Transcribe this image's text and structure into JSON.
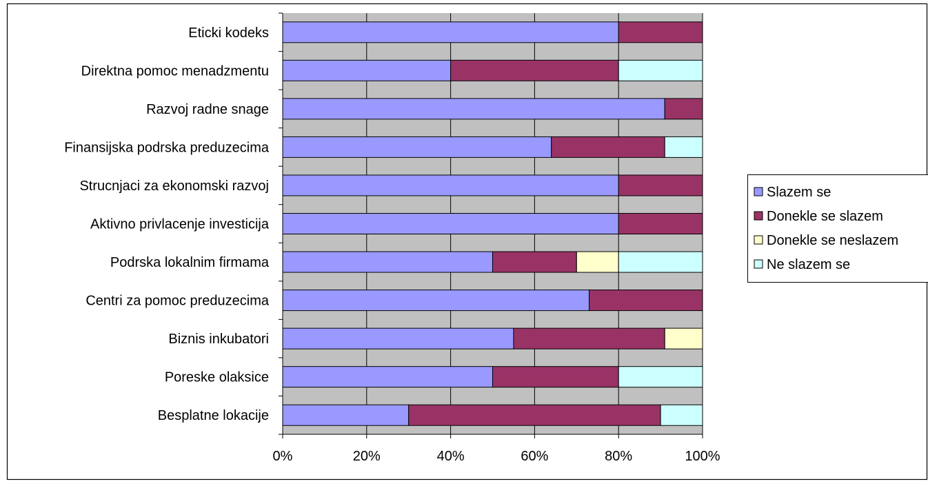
{
  "chart_data": {
    "type": "bar",
    "orientation": "horizontal",
    "stacked": "percent",
    "title": "",
    "xlabel": "",
    "ylabel": "",
    "xlim": [
      0,
      100
    ],
    "x_ticks": [
      "0%",
      "20%",
      "40%",
      "60%",
      "80%",
      "100%"
    ],
    "grid": true,
    "plot_background": "#c0c0c0",
    "legend_position": "right",
    "categories": [
      "Eticki kodeks",
      "Direktna pomoc menadzmentu",
      "Razvoj radne snage",
      "Finansijska podrska preduzecima",
      "Strucnjaci za ekonomski razvoj",
      "Aktivno privlacenje investicija",
      "Podrska lokalnim firmama",
      "Centri za pomoc preduzecima",
      "Biznis inkubatori",
      "Poreske olaksice",
      "Besplatne lokacije"
    ],
    "series": [
      {
        "name": "Slazem se",
        "color": "#9999ff",
        "values": [
          80,
          40,
          91,
          64,
          80,
          80,
          50,
          73,
          55,
          50,
          30
        ]
      },
      {
        "name": "Donekle se slazem",
        "color": "#993366",
        "values": [
          20,
          40,
          9,
          27,
          20,
          20,
          20,
          27,
          36,
          30,
          60
        ]
      },
      {
        "name": "Donekle se neslazem",
        "color": "#ffffcc",
        "values": [
          0,
          0,
          0,
          0,
          0,
          0,
          10,
          0,
          9,
          0,
          0
        ]
      },
      {
        "name": "Ne slazem se",
        "color": "#ccffff",
        "values": [
          0,
          20,
          0,
          9,
          0,
          0,
          20,
          0,
          0,
          20,
          10
        ]
      }
    ]
  }
}
